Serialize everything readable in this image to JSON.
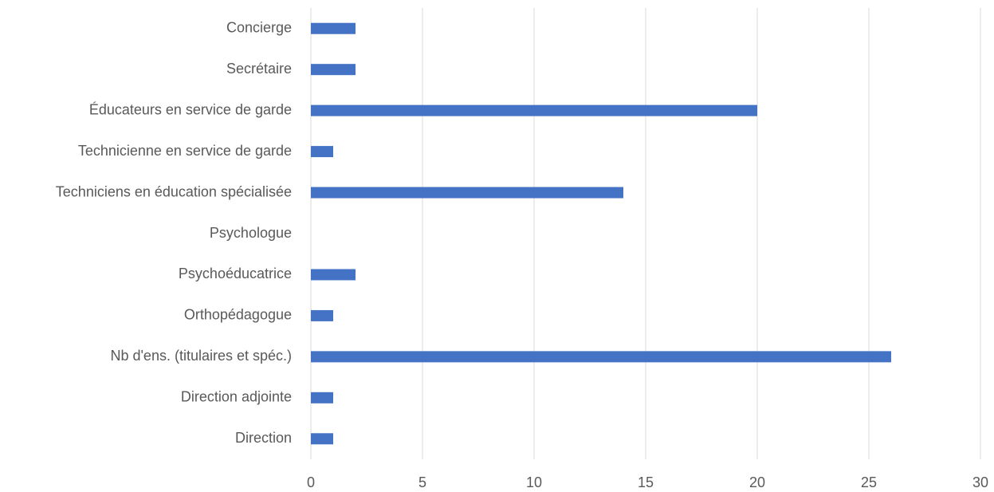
{
  "chart_data": {
    "type": "hbar",
    "categories": [
      "Concierge",
      "Secrétaire",
      "Éducateurs en service de garde",
      "Technicienne en service de garde",
      "Techniciens en éducation spécialisée",
      "Psychologue",
      "Psychoéducatrice",
      "Orthopédagogue",
      "Nb d'ens. (titulaires et spéc.)",
      "Direction adjointe",
      "Direction"
    ],
    "values": [
      2,
      2,
      20,
      1,
      14,
      0,
      2,
      1,
      26,
      1,
      1
    ],
    "color": "#4472c4",
    "xlim": [
      0,
      30
    ],
    "xticks": [
      0,
      5,
      10,
      15,
      20,
      25,
      30
    ],
    "grid": true
  }
}
